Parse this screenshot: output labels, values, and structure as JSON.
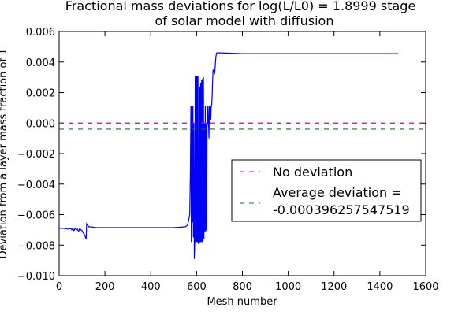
{
  "chart_data": {
    "type": "line",
    "title": "Fractional mass deviations for log(L/L0) = 1.8999 stage",
    "title_line2": "of solar model with diffusion",
    "xlabel": "Mesh number",
    "ylabel": "Deviation from a layer mass fraction of 1",
    "xlim": [
      0,
      1600
    ],
    "ylim": [
      -0.01,
      0.006
    ],
    "xticks": [
      "0",
      "200",
      "400",
      "600",
      "800",
      "1000",
      "1200",
      "1400",
      "1600"
    ],
    "yticks": [
      "0.006",
      "0.004",
      "0.002",
      "0.000",
      "−0.002",
      "−0.004",
      "−0.006",
      "−0.008",
      "−0.010"
    ],
    "grid": false,
    "legend_position": "center-right",
    "colors": {
      "data": "#0000ff",
      "no_deviation": "#bf00bf",
      "average": "#008000"
    },
    "series": [
      {
        "style": "solid",
        "x": [
          0,
          20,
          40,
          50,
          55,
          60,
          65,
          70,
          75,
          80,
          85,
          90,
          95,
          100,
          105,
          110,
          115,
          118,
          120,
          125,
          130,
          140,
          160,
          200,
          300,
          400,
          500,
          550,
          560,
          565,
          570,
          573,
          575,
          577,
          578,
          579,
          580,
          582,
          584,
          586,
          588,
          590,
          592,
          594,
          596,
          598,
          600,
          602,
          604,
          606,
          608,
          610,
          612,
          614,
          616,
          618,
          620,
          622,
          624,
          626,
          628,
          630,
          632,
          634,
          636,
          638,
          640,
          642,
          644,
          646,
          648,
          650,
          652,
          654,
          656,
          658,
          660,
          662,
          664,
          666,
          668,
          670,
          672,
          674,
          676,
          678,
          680,
          682,
          684,
          686,
          688,
          690,
          695,
          700,
          800,
          1000,
          1200,
          1400,
          1480
        ],
        "y": [
          -0.0069,
          -0.0069,
          -0.00695,
          -0.0069,
          -0.007,
          -0.0069,
          -0.00705,
          -0.0069,
          -0.007,
          -0.00695,
          -0.0071,
          -0.0069,
          -0.007,
          -0.00705,
          -0.0072,
          -0.0073,
          -0.0075,
          -0.0076,
          -0.0066,
          -0.0067,
          -0.0068,
          -0.0068,
          -0.00685,
          -0.00685,
          -0.00685,
          -0.00685,
          -0.00685,
          -0.0068,
          -0.0067,
          -0.0064,
          -0.006,
          -0.003,
          0.0011,
          -0.0078,
          0.0011,
          -0.0078,
          0.0011,
          -0.0065,
          0.0011,
          -0.0075,
          0.0,
          -0.0089,
          -0.0078,
          0.0031,
          -0.0078,
          0.0031,
          -0.0078,
          0.0031,
          -0.0078,
          0.0031,
          -0.0079,
          -0.0079,
          -0.0078,
          0.0024,
          -0.0078,
          0.0026,
          -0.0078,
          0.0028,
          -0.0078,
          0.0029,
          -0.0077,
          0.003,
          -0.0076,
          0.0,
          -0.0071,
          0.0011,
          -0.0071,
          0.0,
          -0.007,
          0.0011,
          -0.0001,
          0.0011,
          0.0,
          -0.001,
          0.0011,
          0.0,
          0.0011,
          0.0002,
          0.0011,
          0.0012,
          0.0018,
          0.0028,
          0.0035,
          0.0034,
          0.0033,
          0.0032,
          0.0034,
          0.0039,
          0.0043,
          0.0045,
          0.0046,
          0.0046,
          0.0046,
          0.0046,
          0.00455,
          0.00455,
          0.00455,
          0.00455,
          0.00455
        ]
      },
      {
        "name": "No deviation",
        "style": "dashed",
        "x": [
          0,
          1600
        ],
        "y": [
          0.0,
          0.0
        ]
      },
      {
        "name": "Average deviation =\n-0.000396257547519",
        "style": "dashed",
        "x": [
          0,
          1600
        ],
        "y": [
          -0.000396257547519,
          -0.000396257547519
        ]
      }
    ],
    "legend": {
      "entry1": "No deviation",
      "entry2_line1": "Average deviation =",
      "entry2_line2": "-0.000396257547519"
    }
  }
}
